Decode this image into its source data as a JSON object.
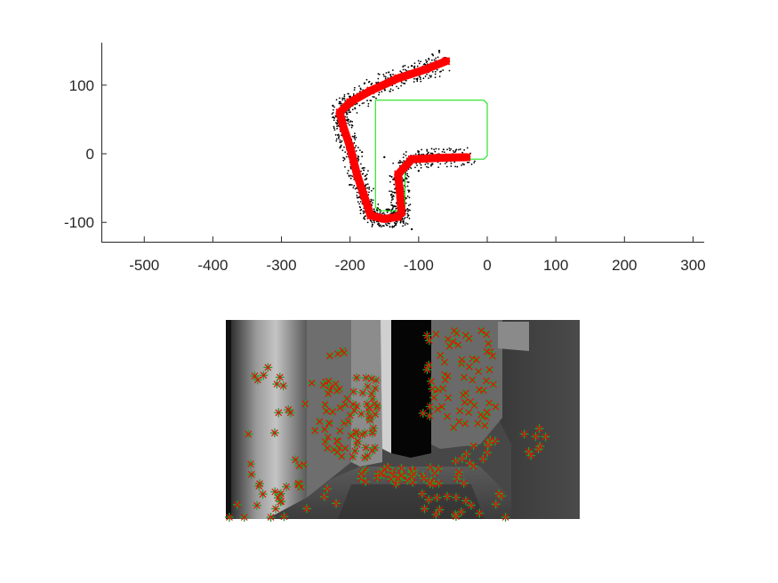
{
  "chart_data": [
    {
      "type": "scatter",
      "title": "",
      "xlabel": "",
      "ylabel": "",
      "xlim": [
        -560,
        315
      ],
      "ylim": [
        -130,
        160
      ],
      "x_ticks": [
        -500,
        -400,
        -300,
        -200,
        -100,
        0,
        100,
        200,
        300
      ],
      "x_tick_labels": [
        "-500",
        "-400",
        "-300",
        "-200",
        "-100",
        "0",
        "100",
        "200",
        "300"
      ],
      "y_ticks": [
        -100,
        0,
        100
      ],
      "y_tick_labels": [
        "-100",
        "0",
        "100"
      ],
      "axes_box": false,
      "grid": false,
      "aspect": "equal",
      "colors": {
        "path": "#ff0000",
        "points": "#000000",
        "ground_truth": "#00dd00",
        "axis": "#262626"
      },
      "series": [
        {
          "style": "red-markers",
          "x": [
            -30,
            -70,
            -110,
            -130,
            -127,
            -125,
            -130,
            -150,
            -170,
            -180,
            -190,
            -200,
            -210,
            -215,
            -200,
            -170,
            -130,
            -90,
            -60
          ],
          "y": [
            -5,
            -6,
            -8,
            -30,
            -60,
            -85,
            -92,
            -95,
            -90,
            -60,
            -30,
            10,
            40,
            60,
            75,
            92,
            110,
            123,
            135
          ]
        },
        {
          "style": "black-points",
          "x": [
            -80,
            -100,
            -150,
            -175,
            -190,
            -195,
            -205,
            -215,
            -225,
            -215,
            -200,
            -170,
            -140,
            -110,
            -70,
            -80,
            -100,
            -140,
            -115,
            -110
          ],
          "y": [
            0,
            3,
            -5,
            -70,
            -50,
            -20,
            15,
            40,
            70,
            55,
            68,
            88,
            112,
            128,
            150,
            -15,
            -25,
            -60,
            -90,
            -110
          ]
        },
        {
          "style": "green-line",
          "x": [
            -163,
            -5,
            0,
            0,
            -5,
            -115,
            -120,
            -120,
            -125,
            -157,
            -163,
            -163
          ],
          "y": [
            78,
            78,
            73,
            -3,
            -8,
            -8,
            -13,
            -78,
            -83,
            -83,
            -78,
            78
          ]
        }
      ]
    },
    {
      "type": "image-keypoints",
      "title": "",
      "colors": {
        "plus": "#20a020",
        "cross": "#e01010"
      },
      "markers": "plus and cross keypoint markers drawn over a grayscale corridor rendering"
    }
  ]
}
